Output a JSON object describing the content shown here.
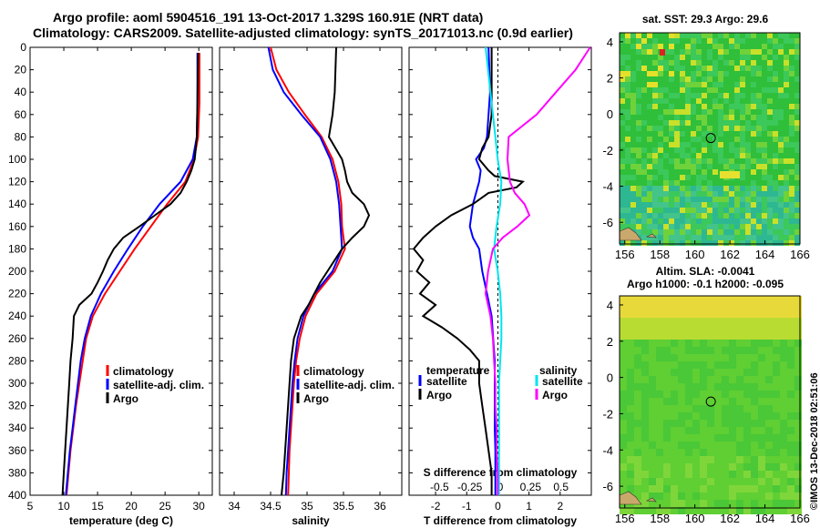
{
  "header": {
    "line1": "Argo profile: aoml 5904516_191 13-Oct-2017 1.329S 160.91E (NRT data)",
    "line2": "Climatology: CARS2009. Satellite-adjusted climatology: synTS_20171013.nc (0.9d earlier)"
  },
  "stamp": "©IMOS 13-Dec-2018 02:51:06",
  "colors": {
    "clim": "#ff0000",
    "sat": "#0000ff",
    "argo": "#000000",
    "sal_sat": "#00e5ee",
    "sal_argo": "#ff00ff"
  },
  "chart_data": [
    {
      "type": "line",
      "id": "temperature",
      "xlabel": "temperature (deg C)",
      "xlim": [
        5,
        32
      ],
      "xticks": [
        5,
        10,
        15,
        20,
        25,
        30
      ],
      "xtick_labels": [
        "5",
        "10",
        "15",
        "20",
        "25",
        "30"
      ],
      "ylim": [
        0,
        400
      ],
      "yticks": [
        0,
        20,
        40,
        60,
        80,
        100,
        120,
        140,
        160,
        180,
        200,
        220,
        240,
        260,
        280,
        300,
        320,
        340,
        360,
        380,
        400
      ],
      "ytick_labels": [
        "0",
        "20",
        "40",
        "60",
        "80",
        "100",
        "120",
        "140",
        "160",
        "180",
        "200",
        "220",
        "240",
        "260",
        "280",
        "300",
        "320",
        "340",
        "360",
        "380",
        "400"
      ],
      "legend": [
        "climatology",
        "satellite-adj. clim.",
        "Argo"
      ],
      "series": [
        {
          "name": "climatology",
          "color": "#ff0000",
          "depth": [
            5,
            50,
            80,
            100,
            120,
            140,
            160,
            180,
            200,
            220,
            240,
            260,
            280,
            300,
            320,
            340,
            360,
            380,
            400
          ],
          "values": [
            30.1,
            30.1,
            29.9,
            29.3,
            28,
            25.3,
            22.9,
            20.5,
            18.3,
            16.1,
            14.3,
            13.3,
            12.8,
            12.3,
            11.8,
            11.4,
            11,
            10.7,
            10.4
          ]
        },
        {
          "name": "satellite-adj. clim.",
          "color": "#0000ff",
          "depth": [
            5,
            50,
            80,
            100,
            120,
            140,
            160,
            180,
            200,
            220,
            240,
            260,
            280,
            300,
            320,
            340,
            360,
            380,
            400
          ],
          "values": [
            29.8,
            29.8,
            29.7,
            29.1,
            27.3,
            24.2,
            21.7,
            19.5,
            17.4,
            15.5,
            14,
            13.1,
            12.5,
            12.1,
            11.7,
            11.3,
            10.9,
            10.6,
            10.3
          ]
        },
        {
          "name": "Argo",
          "color": "#000000",
          "depth": [
            5,
            50,
            80,
            100,
            110,
            120,
            130,
            140,
            150,
            160,
            170,
            180,
            190,
            200,
            210,
            220,
            230,
            240,
            260,
            280,
            300,
            320,
            340,
            360,
            380,
            400
          ],
          "values": [
            29.9,
            29.8,
            29.7,
            29.4,
            28.9,
            28.2,
            27.3,
            25.8,
            23.5,
            21.2,
            18.8,
            17.4,
            16.5,
            15.8,
            15,
            14.1,
            12.3,
            11.5,
            11.3,
            11,
            10.8,
            10.6,
            10.4,
            10.2,
            10,
            9.8
          ]
        }
      ]
    },
    {
      "type": "line",
      "id": "salinity",
      "xlabel": "salinity",
      "xlim": [
        33.8,
        36.3
      ],
      "xticks": [
        34,
        34.5,
        35,
        35.5,
        36
      ],
      "xtick_labels": [
        "34",
        "34.5",
        "35",
        "35.5",
        "36"
      ],
      "ylim": [
        0,
        400
      ],
      "legend": [
        "climatology",
        "satellite-adj. clim.",
        "Argo"
      ],
      "series": [
        {
          "name": "climatology",
          "color": "#ff0000",
          "depth": [
            0,
            20,
            40,
            60,
            80,
            100,
            120,
            140,
            160,
            180,
            200,
            220,
            240,
            260,
            280,
            300,
            320,
            340,
            360,
            380,
            400
          ],
          "values": [
            34.5,
            34.58,
            34.75,
            34.97,
            35.2,
            35.35,
            35.43,
            35.47,
            35.48,
            35.52,
            35.38,
            35.13,
            34.98,
            34.9,
            34.85,
            34.82,
            34.8,
            34.78,
            34.76,
            34.75,
            34.74
          ]
        },
        {
          "name": "satellite-adj. clim.",
          "color": "#0000ff",
          "depth": [
            0,
            20,
            40,
            60,
            80,
            100,
            120,
            140,
            160,
            180,
            200,
            220,
            240,
            260,
            280,
            300,
            320,
            340,
            360,
            380,
            400
          ],
          "values": [
            34.47,
            34.53,
            34.68,
            34.92,
            35.18,
            35.32,
            35.4,
            35.44,
            35.46,
            35.48,
            35.35,
            35.1,
            34.95,
            34.87,
            34.83,
            34.8,
            34.78,
            34.76,
            34.74,
            34.72,
            34.71
          ]
        },
        {
          "name": "Argo",
          "color": "#000000",
          "depth": [
            0,
            40,
            60,
            80,
            100,
            110,
            120,
            130,
            140,
            150,
            160,
            170,
            180,
            190,
            200,
            210,
            220,
            230,
            240,
            260,
            280,
            300,
            320,
            340,
            360,
            380,
            400
          ],
          "values": [
            35.4,
            35.38,
            35.35,
            35.3,
            35.48,
            35.52,
            35.55,
            35.62,
            35.78,
            35.85,
            35.78,
            35.62,
            35.48,
            35.38,
            35.28,
            35.18,
            35.1,
            35.02,
            34.92,
            34.82,
            34.78,
            34.76,
            34.74,
            34.72,
            34.7,
            34.68,
            34.65
          ]
        }
      ]
    },
    {
      "type": "line",
      "id": "differences",
      "xlabel": "T difference from climatology",
      "xlim": [
        -2.85,
        3
      ],
      "xticks": [
        -2,
        -1,
        0,
        1,
        2
      ],
      "xtick_labels": [
        "-2",
        "-1",
        "0",
        "1",
        "2"
      ],
      "top_xlabel": "S difference from climatology",
      "top_xlim": [
        -0.75,
        0.75
      ],
      "top_xticks": [
        -0.5,
        -0.25,
        0,
        0.25,
        0.5
      ],
      "top_xtick_labels": [
        "-0.5",
        "-0.25",
        "0",
        "0.25",
        "0.5"
      ],
      "ylim": [
        0,
        400
      ],
      "legend": {
        "temperature_title": "temperature",
        "salinity_title": "salinity",
        "temperature": [
          "satellite",
          "Argo"
        ],
        "salinity": [
          "satellite",
          "Argo"
        ]
      },
      "series": [
        {
          "name": "T satellite",
          "color": "#0000ff",
          "depth": [
            0,
            40,
            80,
            90,
            100,
            110,
            120,
            140,
            160,
            170,
            180,
            200,
            220,
            240,
            260,
            280,
            300,
            320,
            340,
            360,
            380,
            400
          ],
          "values": [
            -0.3,
            -0.25,
            -0.35,
            -0.45,
            -0.7,
            -0.55,
            -0.6,
            -0.8,
            -0.9,
            -0.8,
            -0.6,
            -0.5,
            -0.35,
            -0.2,
            -0.15,
            -0.1,
            -0.1,
            -0.1,
            -0.1,
            -0.08,
            -0.08,
            -0.08
          ]
        },
        {
          "name": "T Argo",
          "color": "#000000",
          "depth": [
            0,
            20,
            40,
            60,
            80,
            90,
            100,
            110,
            115,
            120,
            125,
            130,
            140,
            150,
            160,
            170,
            180,
            190,
            200,
            210,
            220,
            230,
            240,
            250,
            260,
            270,
            280,
            300,
            320,
            340,
            360,
            380,
            400
          ],
          "values": [
            -0.2,
            -0.2,
            -0.2,
            -0.2,
            -0.3,
            -0.5,
            -0.6,
            -0.3,
            -0.1,
            0.8,
            0.6,
            -0.3,
            -0.8,
            -1.5,
            -2,
            -2.4,
            -2.7,
            -2.4,
            -2.6,
            -2.2,
            -2.5,
            -2.0,
            -2.4,
            -1.8,
            -1.3,
            -0.9,
            -0.6,
            -0.6,
            -0.5,
            -0.4,
            -0.3,
            -0.2,
            -0.2
          ]
        },
        {
          "name": "S satellite",
          "color": "#00e5ee",
          "depth": [
            0,
            40,
            80,
            100,
            120,
            140,
            160,
            180,
            200,
            220,
            240,
            260,
            280,
            300,
            320,
            340,
            360,
            380,
            400
          ],
          "values": [
            -0.12,
            -0.08,
            -0.04,
            -0.02,
            0.01,
            0.0,
            -0.03,
            -0.05,
            -0.02,
            0.0,
            0.01,
            0.01,
            0.0,
            -0.01,
            -0.01,
            -0.01,
            -0.01,
            -0.01,
            -0.01
          ]
        },
        {
          "name": "S Argo",
          "color": "#ff00ff",
          "depth": [
            0,
            20,
            40,
            60,
            80,
            100,
            120,
            130,
            140,
            150,
            160,
            170,
            180,
            200,
            220,
            240,
            260,
            280,
            300,
            320,
            340,
            360,
            380,
            400
          ],
          "values": [
            0.74,
            0.62,
            0.46,
            0.3,
            0.07,
            0.06,
            0.08,
            0.12,
            0.2,
            0.24,
            0.14,
            0.02,
            -0.06,
            -0.1,
            -0.12,
            -0.08,
            -0.06,
            -0.05,
            -0.04,
            -0.04,
            -0.03,
            -0.03,
            -0.02,
            -0.02
          ]
        }
      ]
    },
    {
      "type": "heatmap",
      "id": "sst-map",
      "title": "sat. SST: 29.3 Argo: 29.6",
      "xlim": [
        155.7,
        166
      ],
      "ylim": [
        -7.2,
        4.5
      ],
      "xticks": [
        156,
        158,
        160,
        162,
        164,
        166
      ],
      "xtick_labels": [
        "156",
        "158",
        "160",
        "162",
        "164",
        "166"
      ],
      "yticks": [
        4,
        2,
        0,
        -2,
        -4,
        -6
      ],
      "ytick_labels": [
        "4",
        "2",
        "0",
        "-2",
        "-4",
        "-6"
      ],
      "argo_position": [
        160.91,
        -1.329
      ]
    },
    {
      "type": "heatmap",
      "id": "sla-map",
      "title": "Altim. SLA: -0.0041",
      "subtitle": "Argo h1000: -0.1 h2000: -0.095",
      "xlim": [
        155.7,
        166
      ],
      "ylim": [
        -7.2,
        4.5
      ],
      "xticks": [
        156,
        158,
        160,
        162,
        164,
        166
      ],
      "xtick_labels": [
        "156",
        "158",
        "160",
        "162",
        "164",
        "166"
      ],
      "yticks": [
        4,
        2,
        0,
        -2,
        -4,
        -6
      ],
      "ytick_labels": [
        "4",
        "2",
        "0",
        "-2",
        "-4",
        "-6"
      ],
      "argo_position": [
        160.91,
        -1.329
      ]
    }
  ]
}
